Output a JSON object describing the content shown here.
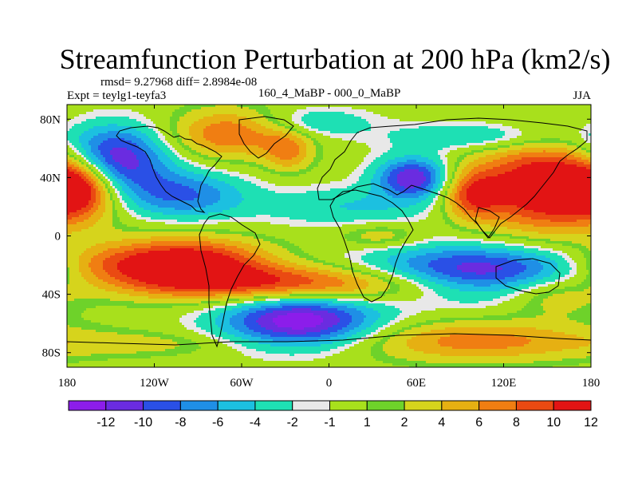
{
  "chart_data": {
    "type": "heatmap",
    "title": "Streamfunction Perturbation at 200 hPa (km2/s)",
    "stats_label": "rmsd= 9.27968 diff= 2.8984e-08",
    "experiment_label": "Expt = teylg1-teyfa3",
    "center_label": "160_4_MaBP - 000_0_MaBP",
    "season_label": "JJA",
    "x_range": [
      -180,
      180
    ],
    "y_range": [
      -90,
      90
    ],
    "x_ticks": [
      {
        "value": -180,
        "label": "180"
      },
      {
        "value": -120,
        "label": "120W"
      },
      {
        "value": -60,
        "label": "60W"
      },
      {
        "value": 0,
        "label": "0"
      },
      {
        "value": 60,
        "label": "60E"
      },
      {
        "value": 120,
        "label": "120E"
      },
      {
        "value": 180,
        "label": "180"
      }
    ],
    "y_ticks": [
      {
        "value": 80,
        "label": "80N"
      },
      {
        "value": 40,
        "label": "40N"
      },
      {
        "value": 0,
        "label": "0"
      },
      {
        "value": -40,
        "label": "40S"
      },
      {
        "value": -80,
        "label": "80S"
      }
    ],
    "levels": [
      -12,
      -10,
      -8,
      -6,
      -4,
      -2,
      -1,
      1,
      2,
      4,
      6,
      8,
      10,
      12
    ],
    "level_labels": [
      "-12",
      "-10",
      "-8",
      "-6",
      "-4",
      "-2",
      "-1",
      "1",
      "2",
      "4",
      "6",
      "8",
      "10",
      "12"
    ],
    "colors": [
      "#8c1dea",
      "#6a2ce0",
      "#2a50e6",
      "#1f8fe6",
      "#1cc0e0",
      "#1ee0b4",
      "#e8e8e8",
      "#a8e01c",
      "#6ed22a",
      "#d6d41c",
      "#e6b012",
      "#f07e12",
      "#ea4a12",
      "#e21414"
    ],
    "features": [
      {
        "lon": -150,
        "lat": 52,
        "value": -14,
        "sx": 26,
        "sy": 16
      },
      {
        "lon": -100,
        "lat": 28,
        "value": -8,
        "sx": 30,
        "sy": 12
      },
      {
        "lon": -172,
        "lat": 35,
        "value": 12,
        "sx": 18,
        "sy": 14
      },
      {
        "lon": -68,
        "lat": 70,
        "value": 8,
        "sx": 28,
        "sy": 12
      },
      {
        "lon": -28,
        "lat": 58,
        "value": 6,
        "sx": 12,
        "sy": 10
      },
      {
        "lon": 58,
        "lat": 40,
        "value": -12,
        "sx": 18,
        "sy": 10
      },
      {
        "lon": 14,
        "lat": 20,
        "value": -4,
        "sx": 45,
        "sy": 10
      },
      {
        "lon": -10,
        "lat": 78,
        "value": -4,
        "sx": 28,
        "sy": 7
      },
      {
        "lon": 108,
        "lat": 68,
        "value": -5,
        "sx": 45,
        "sy": 7
      },
      {
        "lon": 35,
        "lat": 0,
        "value": 4,
        "sx": 20,
        "sy": 6
      },
      {
        "lon": 150,
        "lat": 34,
        "value": 14,
        "sx": 35,
        "sy": 22
      },
      {
        "lon": 98,
        "lat": 28,
        "value": 8,
        "sx": 14,
        "sy": 12
      },
      {
        "lon": -100,
        "lat": -18,
        "value": 13,
        "sx": 40,
        "sy": 12
      },
      {
        "lon": -10,
        "lat": -33,
        "value": 11,
        "sx": 90,
        "sy": 9
      },
      {
        "lon": 100,
        "lat": -26,
        "value": -14,
        "sx": 55,
        "sy": 13
      },
      {
        "lon": -20,
        "lat": -58,
        "value": -14,
        "sx": 38,
        "sy": 13
      },
      {
        "lon": 100,
        "lat": -72,
        "value": 7,
        "sx": 60,
        "sy": 10
      },
      {
        "lon": -120,
        "lat": -74,
        "value": 2.5,
        "sx": 50,
        "sy": 6
      },
      {
        "lon": 155,
        "lat": -40,
        "value": 5,
        "sx": 25,
        "sy": 10
      },
      {
        "lon": -160,
        "lat": -20,
        "value": 4,
        "sx": 25,
        "sy": 9
      }
    ]
  }
}
